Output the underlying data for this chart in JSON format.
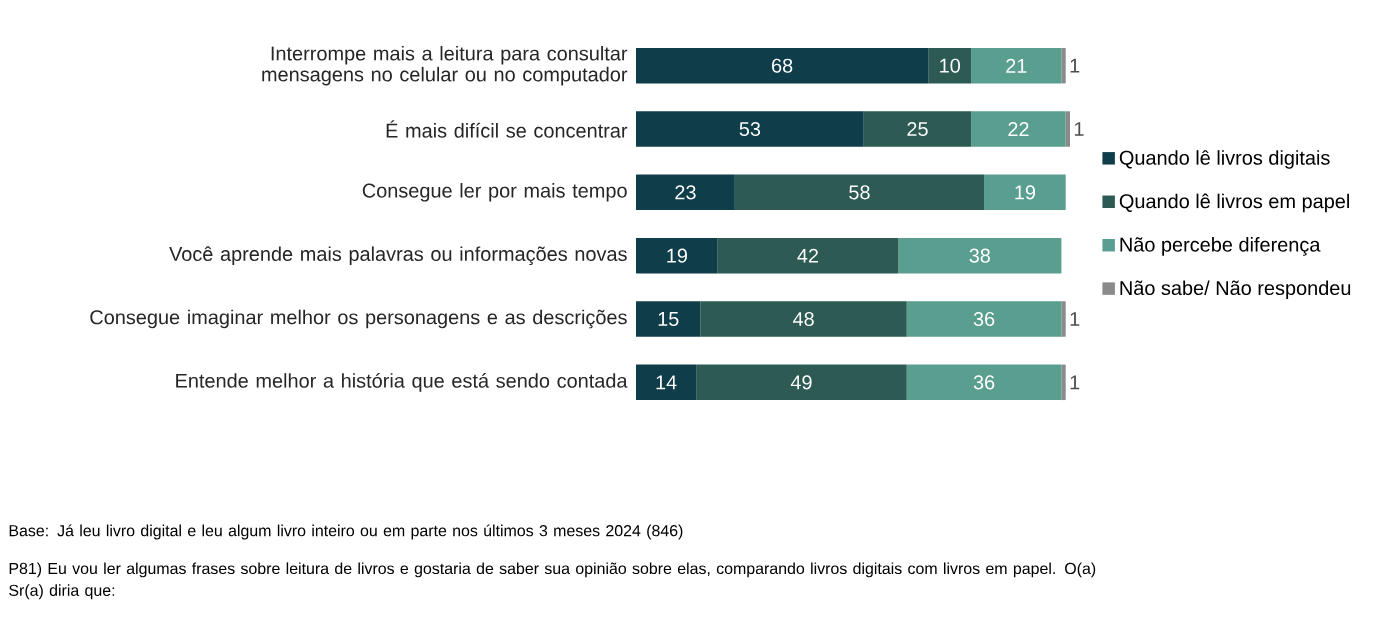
{
  "chart_data": {
    "type": "bar",
    "orientation": "horizontal",
    "stacked": true,
    "categories": [
      "Interrompe mais a leitura para consultar mensagens no celular ou no computador",
      "É mais difícil se concentrar",
      "Consegue ler por mais tempo",
      "Você aprende mais palavras ou informações novas",
      "Consegue imaginar melhor os personagens e as descrições",
      "Entende melhor a história que está sendo contada"
    ],
    "series": [
      {
        "name": "Quando lê livros digitais",
        "color": "#0f3d4a",
        "values": [
          68,
          53,
          23,
          19,
          15,
          14
        ]
      },
      {
        "name": "Quando lê livros em papel",
        "color": "#2d5a52",
        "values": [
          10,
          25,
          58,
          42,
          48,
          49
        ]
      },
      {
        "name": "Não percebe diferença",
        "color": "#5a9e8f",
        "values": [
          21,
          22,
          19,
          38,
          36,
          36
        ]
      },
      {
        "name": "Não sabe/ Não respondeu",
        "color": "#8a8a8a",
        "values": [
          1,
          1,
          null,
          null,
          1,
          1
        ]
      }
    ],
    "tick_labels": "y",
    "data_labels": true,
    "legend": "right",
    "annotations": [
      "Base: Já leu livro digital e leu algum livro inteiro ou em parte nos últimos 3 meses 2024 (846)",
      "P81) Eu vou ler algumas frases sobre leitura de livros e gostaria de saber sua opinião sobre elas, comparando livros digitais com livros em papel. O(a) Sr(a) diria que:"
    ]
  }
}
